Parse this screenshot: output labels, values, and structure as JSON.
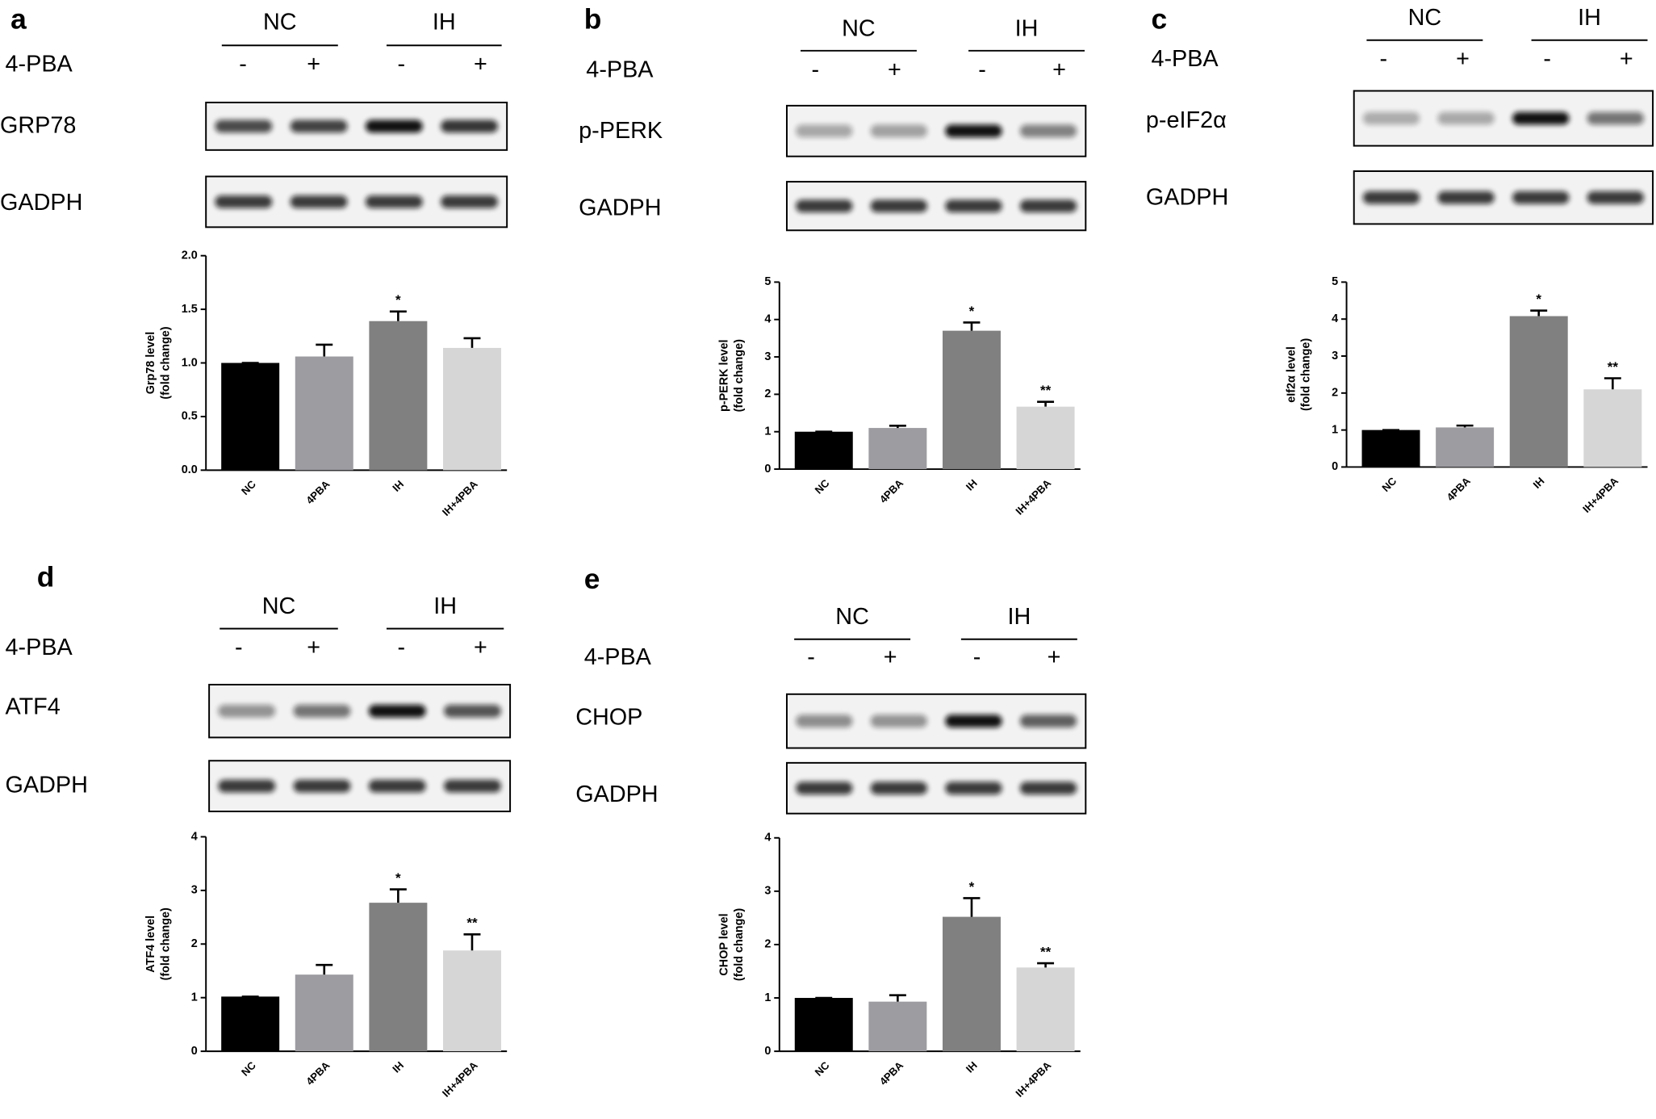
{
  "chart_data": [
    {
      "type": "bar",
      "panel": "a",
      "groups": [
        "NC",
        "IH"
      ],
      "treatment_label": "4-PBA",
      "treatment_signs": [
        "-",
        "+",
        "-",
        "+"
      ],
      "blot_rows": [
        "GRP78",
        "GADPH"
      ],
      "y_label": [
        "Grp78 level",
        "(fold change)"
      ],
      "categories": [
        "NC",
        "4PBA",
        "IH",
        "IH+4PBA"
      ],
      "values": [
        1.0,
        1.06,
        1.39,
        1.14
      ],
      "errors": [
        0,
        0.11,
        0.09,
        0.09
      ],
      "annotations": [
        null,
        null,
        "*",
        null
      ],
      "colors": [
        "#000000",
        "#9c9ca1",
        "#808080",
        "#d6d6d6"
      ],
      "ylim": [
        0,
        2
      ],
      "yticks": [
        {
          "value": 0,
          "label": "0.0"
        },
        0.5,
        {
          "value": 1,
          "label": "1.0"
        },
        1.5,
        {
          "value": 2,
          "label": "2.0"
        }
      ]
    },
    {
      "type": "bar",
      "panel": "b",
      "groups": [
        "NC",
        "IH"
      ],
      "treatment_label": "4-PBA",
      "treatment_signs": [
        "-",
        "+",
        "-",
        "+"
      ],
      "blot_rows": [
        "p-PERK",
        "GADPH"
      ],
      "y_label": [
        "p-PERK level",
        "(fold change)"
      ],
      "categories": [
        "NC",
        "4PBA",
        "IH",
        "IH+4PBA"
      ],
      "values": [
        1.0,
        1.1,
        3.7,
        1.67
      ],
      "errors": [
        0,
        0.06,
        0.22,
        0.13
      ],
      "annotations": [
        null,
        null,
        "*",
        "**"
      ],
      "colors": [
        "#000000",
        "#9c9ca1",
        "#808080",
        "#d6d6d6"
      ],
      "ylim": [
        0,
        5
      ],
      "yticks": [
        0,
        1,
        2,
        3,
        4,
        5
      ]
    },
    {
      "type": "bar",
      "panel": "c",
      "groups": [
        "NC",
        "IH"
      ],
      "treatment_label": "4-PBA",
      "treatment_signs": [
        "-",
        "+",
        "-",
        "+"
      ],
      "blot_rows": [
        "p-eIF2α",
        "GADPH"
      ],
      "y_label": [
        "eIf2α level",
        "(fold change)"
      ],
      "categories": [
        "NC",
        "4PBA",
        "IH",
        "IH+4PBA"
      ],
      "values": [
        1.0,
        1.07,
        4.08,
        2.1
      ],
      "errors": [
        0,
        0.05,
        0.15,
        0.3
      ],
      "annotations": [
        null,
        null,
        "*",
        "**"
      ],
      "colors": [
        "#000000",
        "#9c9ca1",
        "#808080",
        "#d6d6d6"
      ],
      "ylim": [
        0,
        5
      ],
      "yticks": [
        0,
        1,
        2,
        3,
        4,
        5
      ]
    },
    {
      "type": "bar",
      "panel": "d",
      "groups": [
        "NC",
        "IH"
      ],
      "treatment_label": "4-PBA",
      "treatment_signs": [
        "-",
        "+",
        "-",
        "+"
      ],
      "blot_rows": [
        "ATF4",
        "GADPH"
      ],
      "y_label": [
        "ATF4 level",
        "(fold change)"
      ],
      "categories": [
        "NC",
        "4PBA",
        "IH",
        "IH+4PBA"
      ],
      "values": [
        1.02,
        1.43,
        2.77,
        1.88
      ],
      "errors": [
        0,
        0.18,
        0.25,
        0.3
      ],
      "annotations": [
        null,
        null,
        "*",
        "**"
      ],
      "colors": [
        "#000000",
        "#9c9ca1",
        "#808080",
        "#d6d6d6"
      ],
      "ylim": [
        0,
        4
      ],
      "yticks": [
        0,
        1,
        2,
        3,
        4
      ]
    },
    {
      "type": "bar",
      "panel": "e",
      "groups": [
        "NC",
        "IH"
      ],
      "treatment_label": "4-PBA",
      "treatment_signs": [
        "-",
        "+",
        "-",
        "+"
      ],
      "blot_rows": [
        "CHOP",
        "GADPH"
      ],
      "y_label": [
        "CHOP level",
        "(fold change)"
      ],
      "categories": [
        "NC",
        "4PBA",
        "IH",
        "IH+4PBA"
      ],
      "values": [
        1.0,
        0.93,
        2.52,
        1.57
      ],
      "errors": [
        0,
        0.12,
        0.35,
        0.08
      ],
      "annotations": [
        null,
        null,
        "*",
        "**"
      ],
      "colors": [
        "#000000",
        "#9c9ca1",
        "#808080",
        "#d6d6d6"
      ],
      "ylim": [
        0,
        4
      ],
      "yticks": [
        0,
        1,
        2,
        3,
        4
      ]
    }
  ]
}
